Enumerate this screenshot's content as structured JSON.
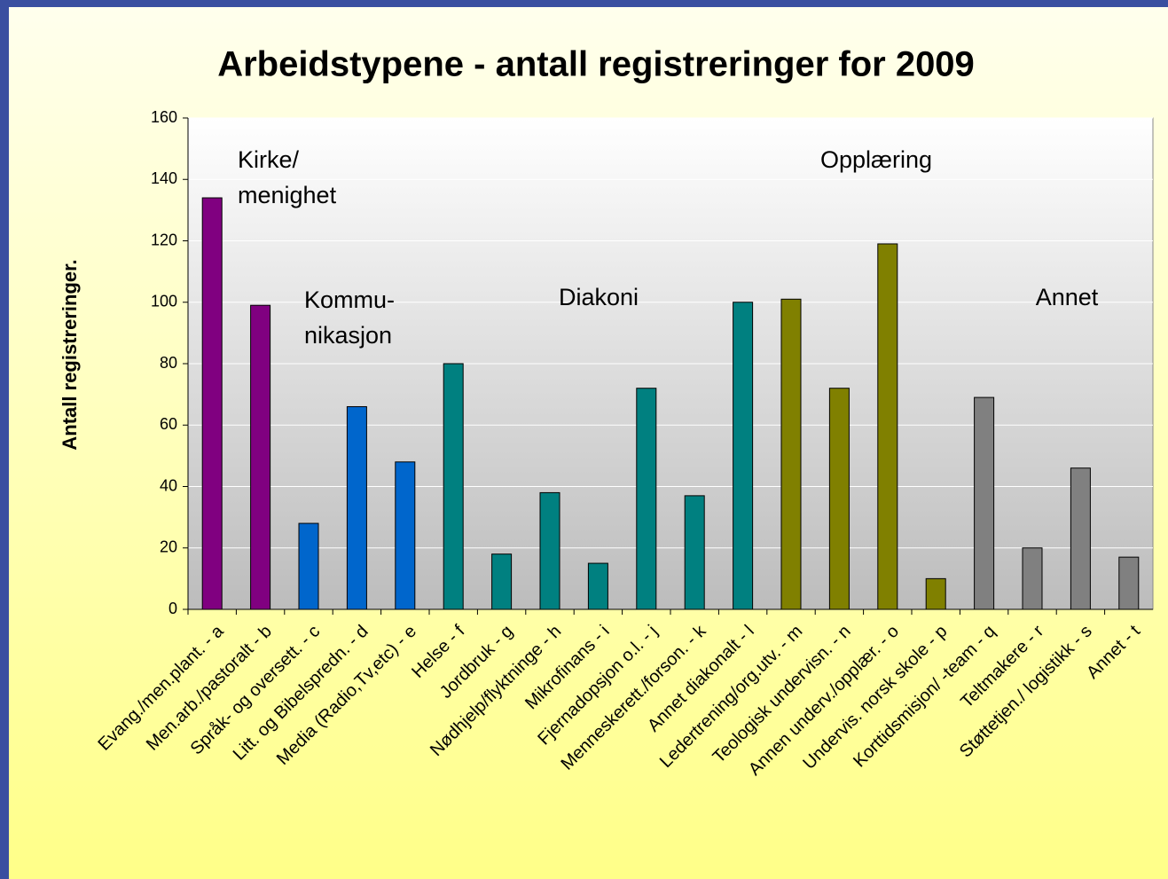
{
  "chart_data": {
    "type": "bar",
    "title": "Arbeidstypene - antall registreringer for 2009",
    "y_label": "Antall registreringer.",
    "categories": [
      "Evang./men.plant. - a",
      "Men.arb./pastoralt - b",
      "Språk- og oversett. - c",
      "Litt. og Bibelspredn. - d",
      "Media (Radio,Tv,etc) - e",
      "Helse - f",
      "Jordbruk - g",
      "Nødhjelp/flyktninge - h",
      "Mikrofinans - i",
      "Fjernadopsjon o.l. - j",
      "Menneskerett./forson. - k",
      "Annet diakonalt - l",
      "Ledertrening/org.utv. - m",
      "Teologisk undervisn. - n",
      "Annen underv./opplær. - o",
      "Undervis. norsk skole - p",
      "Korttidsmisjon/ -team - q",
      "Teltmakere - r",
      "Støttetjen./ logistikk - s",
      "Annet - t"
    ],
    "values": [
      134,
      99,
      28,
      66,
      48,
      80,
      18,
      38,
      15,
      72,
      37,
      100,
      101,
      72,
      119,
      10,
      69,
      20,
      46,
      17
    ],
    "colors": [
      "#800080",
      "#800080",
      "#0066cc",
      "#0066cc",
      "#0066cc",
      "#008080",
      "#008080",
      "#008080",
      "#008080",
      "#008080",
      "#008080",
      "#008080",
      "#808000",
      "#808000",
      "#808000",
      "#808000",
      "#808080",
      "#808080",
      "#808080",
      "#808080"
    ],
    "ylim": [
      0,
      160
    ],
    "yticks": [
      0,
      20,
      40,
      60,
      80,
      100,
      120,
      140,
      160
    ],
    "grid": true,
    "annotations": [
      [
        "Kirke/",
        "menighet"
      ],
      [
        "Kommu-",
        "nikasjon"
      ],
      [
        "Diakoni"
      ],
      [
        "Opplæring"
      ],
      [
        "Annet"
      ]
    ]
  }
}
